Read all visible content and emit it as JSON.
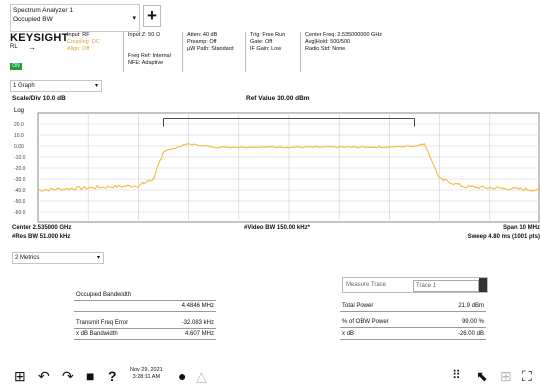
{
  "title_select": {
    "line1": "Spectrum Analyzer 1",
    "line2": "Occupied BW"
  },
  "add_button": "+",
  "header": {
    "brand": "KEYSIGHT",
    "rl": "RL",
    "input_label": "Input: RF",
    "input_warn1": "Coupling: DC",
    "input_warn2": "Align: Off",
    "input_z": "Input Z: 50 Ω",
    "freq_ref": "Freq Ref: Internal",
    "nfe": "NFE: Adaptive",
    "atten": "Atten: 40 dB",
    "preamp": "Preamp: Off",
    "mw_path": "µW Path: Standard",
    "trig": "Trig: Free Run",
    "gate": "Gate: Off",
    "if_gain": "IF Gain: Low",
    "center_freq": "Center Freq: 2.535000000 GHz",
    "avg_hold": "Avg|Hold: 500/500",
    "radio_std": "Radio Std: None",
    "green_badge": "ON"
  },
  "graph_select": "1 Graph",
  "chart_data": {
    "type": "line",
    "title": "Ref Value 30.00 dBm",
    "scale_label": "Scale/Div 10.0 dB",
    "log_label": "Log",
    "y_ticks": [
      "20.0",
      "10.0",
      "0.00",
      "-10.0",
      "-20.0",
      "-30.0",
      "-40.0",
      "-50.0",
      "-60.0"
    ],
    "ylim": [
      -70,
      30
    ],
    "xlim": [
      2.53,
      2.54
    ],
    "x": [
      2.53,
      2.5305,
      2.531,
      2.5315,
      2.532,
      2.5323,
      2.5325,
      2.533,
      2.5335,
      2.534,
      2.5345,
      2.535,
      2.5355,
      2.536,
      2.5365,
      2.537,
      2.5375,
      2.5377,
      2.538,
      2.5385,
      2.539,
      2.5395,
      2.54
    ],
    "series": [
      {
        "values": [
          -40,
          -39,
          -38,
          -37,
          -36,
          -30,
          -5,
          2,
          -1,
          -1,
          -1,
          -1,
          -1,
          -1,
          -1,
          -1,
          0,
          2,
          -30,
          -37,
          -38,
          -39,
          -40
        ]
      }
    ],
    "obw_marker": "2.5325–2.5375",
    "grid": true,
    "footer": {
      "center": "Center 2.535000 GHz",
      "res_bw": "#Res BW 51.000 kHz",
      "video_bw": "#Video BW 150.00 kHz*",
      "span": "Span 10 MHz",
      "sweep": "Sweep 4.80 ms (1001 pts)"
    }
  },
  "metrics_select": "2 Metrics",
  "metrics": {
    "occupied_bw_label": "Occupied Bandwidth",
    "occupied_bw_value": "4.4846 MHz",
    "tx_freq_err_label": "Transmit Freq Error",
    "tx_freq_err_value": "-32.083 kHz",
    "xdb_bw_label": "x dB Bandwidth",
    "xdb_bw_value": "4.607 MHz",
    "measure_trace_label": "Measure Trace",
    "measure_trace_value": "Trace 1",
    "total_power_label": "Total Power",
    "total_power_value": "21.9 dBm",
    "obw_power_label": "% of OBW Power",
    "obw_power_value": "99.00 %",
    "xdb_label": "x dB",
    "xdb_value": "-26.00 dB"
  },
  "taskbar": {
    "date": "Nov 29, 2021",
    "time": "3:28:11 AM",
    "icons": [
      "windows-icon",
      "undo-icon",
      "redo-icon",
      "save-icon",
      "help-icon",
      "record-icon",
      "warning-icon",
      "keypad-icon",
      "cursor-icon",
      "grid-icon",
      "fullscreen-icon"
    ]
  }
}
